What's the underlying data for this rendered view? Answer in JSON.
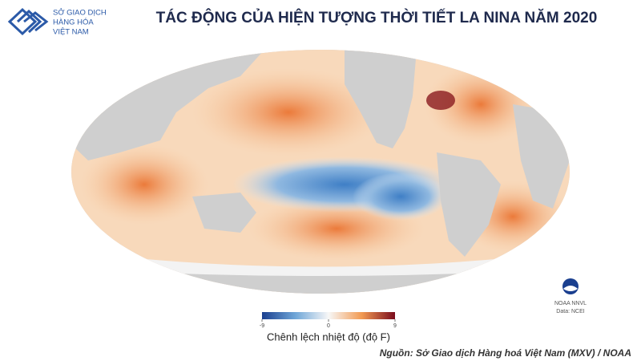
{
  "logo": {
    "lines": [
      "SỞ GIAO DỊCH",
      "HÀNG HÓA",
      "VIỆT NAM"
    ]
  },
  "title": "TÁC ĐỘNG CỦA HIỆN TƯỢNG THỜI TIẾT LA NINA NĂM 2020",
  "colorbar": {
    "lim": [
      -9,
      9
    ],
    "ticks": [
      -9,
      0,
      9
    ],
    "label": "Chênh lệch nhiệt độ (độ F)"
  },
  "credit": {
    "lines": [
      "NOAA NNVL",
      "Data: NCEI"
    ]
  },
  "source": "Nguồn: Sở Giao dịch Hàng hoá Việt Nam (MXV) / NOAA"
}
